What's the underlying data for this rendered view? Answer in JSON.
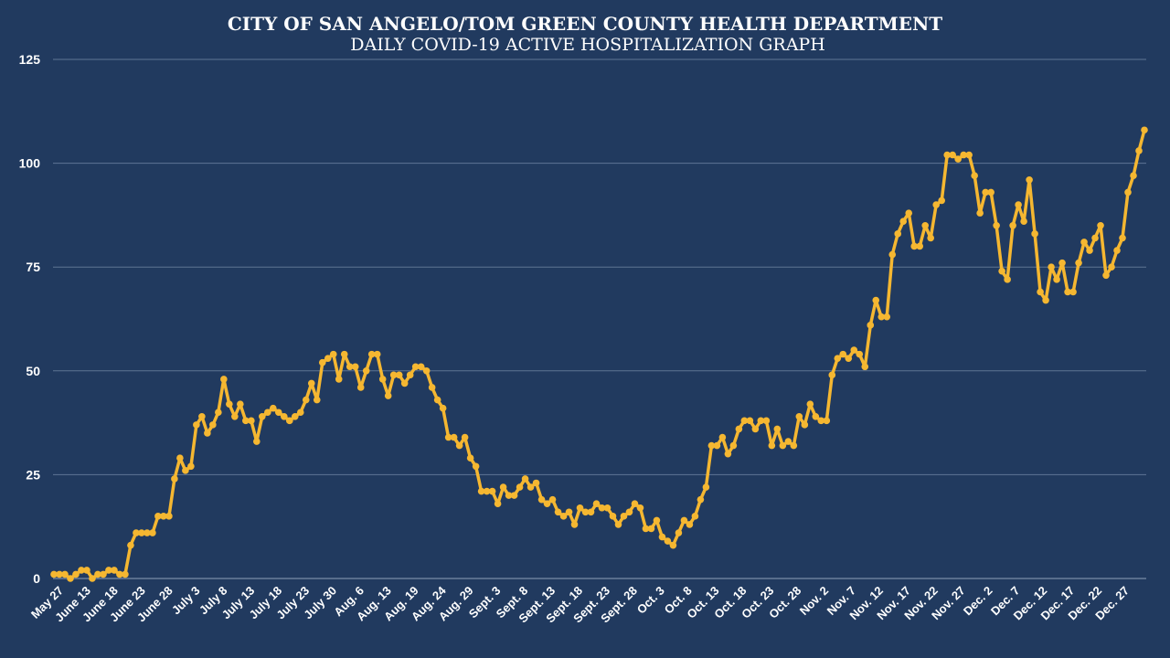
{
  "chart_data": {
    "type": "line",
    "title": "CITY OF SAN ANGELO/TOM GREEN COUNTY HEALTH DEPARTMENT",
    "subtitle": "DAILY COVID-19 ACTIVE HOSPITALIZATION GRAPH",
    "xlabel": "",
    "ylabel": "",
    "ylim": [
      0,
      125
    ],
    "yticks": [
      0,
      25,
      50,
      75,
      100,
      125
    ],
    "grid": true,
    "legend": "none",
    "x_tick_labels": [
      "May 27",
      "June 13",
      "June 18",
      "June 23",
      "June 28",
      "July 3",
      "July 8",
      "July 13",
      "July 18",
      "July 23",
      "July 30",
      "Aug. 6",
      "Aug. 13",
      "Aug. 19",
      "Aug. 24",
      "Aug. 29",
      "Sept. 3",
      "Sept. 8",
      "Sept. 13",
      "Sept. 18",
      "Sept. 23",
      "Sept. 28",
      "Oct. 3",
      "Oct. 8",
      "Oct. 13",
      "Oct. 18",
      "Oct. 23",
      "Oct. 28",
      "Nov. 2",
      "Nov. 7",
      "Nov. 12",
      "Nov. 17",
      "Nov. 22",
      "Nov. 27",
      "Dec. 2",
      "Dec. 7",
      "Dec. 12",
      "Dec. 17",
      "Dec. 22",
      "Dec. 27"
    ],
    "series": [
      {
        "color": "#f5b731",
        "values": [
          1,
          1,
          1,
          0,
          1,
          2,
          2,
          0,
          1,
          1,
          2,
          2,
          1,
          1,
          8,
          11,
          11,
          11,
          11,
          15,
          15,
          15,
          24,
          29,
          26,
          27,
          37,
          39,
          35,
          37,
          40,
          48,
          42,
          39,
          42,
          38,
          38,
          33,
          39,
          40,
          41,
          40,
          39,
          38,
          39,
          40,
          43,
          47,
          43,
          52,
          53,
          54,
          48,
          54,
          51,
          51,
          46,
          50,
          54,
          54,
          48,
          44,
          49,
          49,
          47,
          49,
          51,
          51,
          50,
          46,
          43,
          41,
          34,
          34,
          32,
          34,
          29,
          27,
          21,
          21,
          21,
          18,
          22,
          20,
          20,
          22,
          24,
          22,
          23,
          19,
          18,
          19,
          16,
          15,
          16,
          13,
          17,
          16,
          16,
          18,
          17,
          17,
          15,
          13,
          15,
          16,
          18,
          17,
          12,
          12,
          14,
          10,
          9,
          8,
          11,
          14,
          13,
          15,
          19,
          22,
          32,
          32,
          34,
          30,
          32,
          36,
          38,
          38,
          36,
          38,
          38,
          32,
          36,
          32,
          33,
          32,
          39,
          37,
          42,
          39,
          38,
          38,
          49,
          53,
          54,
          53,
          55,
          54,
          51,
          61,
          67,
          63,
          63,
          78,
          83,
          86,
          88,
          80,
          80,
          85,
          82,
          90,
          91,
          102,
          102,
          101,
          102,
          102,
          97,
          88,
          93,
          93,
          85,
          74,
          72,
          85,
          90,
          86,
          96,
          83,
          69,
          67,
          75,
          72,
          76,
          69,
          69,
          76,
          81,
          79,
          82,
          85,
          73,
          75,
          79,
          82,
          93,
          97,
          103,
          108
        ]
      }
    ]
  }
}
